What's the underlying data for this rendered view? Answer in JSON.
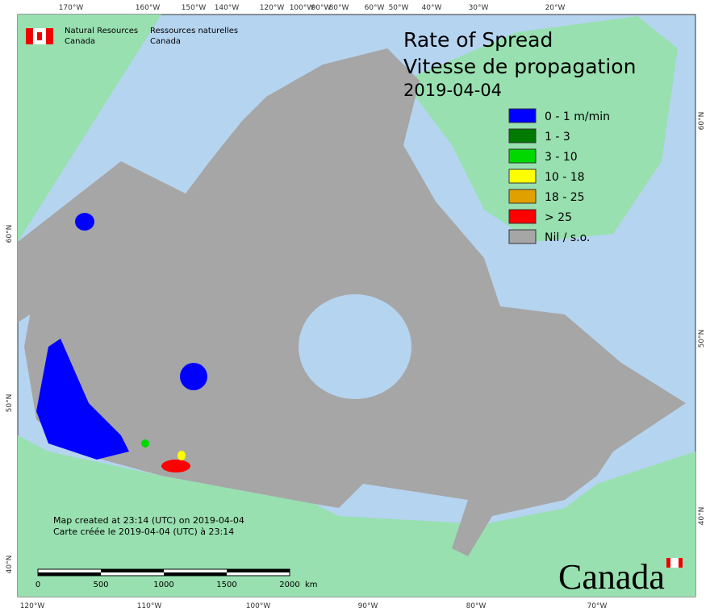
{
  "header": {
    "org_en": [
      "Natural Resources",
      "Canada"
    ],
    "org_fr": [
      "Ressources naturelles",
      "Canada"
    ]
  },
  "title": [
    "Rate of Spread",
    "Vitesse de propagation"
  ],
  "date": "2019-04-04",
  "legend": [
    {
      "label": "0 - 1 m/min",
      "color": "#0000ff"
    },
    {
      "label": "1 - 3",
      "color": "#007a00"
    },
    {
      "label": "3 - 10",
      "color": "#00d800"
    },
    {
      "label": "10 - 18",
      "color": "#ffff00"
    },
    {
      "label": "18 - 25",
      "color": "#e0a000"
    },
    {
      "label": "> 25",
      "color": "#ff0000"
    },
    {
      "label": "Nil / s.o.",
      "color": "#a6a6a6"
    }
  ],
  "top_labels": [
    "170°W",
    "160°W",
    "150°W",
    "140°W",
    "120°W",
    "100°W",
    "90°W",
    "80°W",
    "60°W",
    "50°W",
    "40°W",
    "30°W",
    "20°W"
  ],
  "bottom_labels": [
    "120°W",
    "110°W",
    "100°W",
    "90°W",
    "80°W",
    "70°W"
  ],
  "left_labels": [
    "60°N",
    "50°N",
    "40°N"
  ],
  "right_labels": [
    "60°N",
    "50°N",
    "40°N"
  ],
  "credits": [
    "Map created at 23:14 (UTC) on 2019-04-04",
    "Carte créée le 2019-04-04 (UTC) à 23:14"
  ],
  "scale": {
    "ticks": [
      "0",
      "500",
      "1000",
      "1500",
      "2000"
    ],
    "unit": "km"
  },
  "wordmark": "Canada"
}
